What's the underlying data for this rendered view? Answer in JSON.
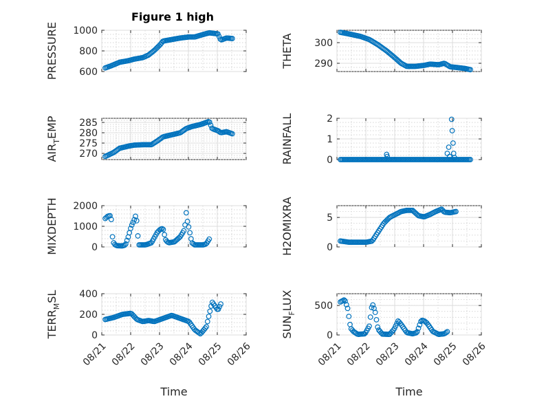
{
  "figure": {
    "title": "Figure 1 high"
  },
  "chart_data": [
    {
      "id": "pressure",
      "type": "scatter",
      "title": "Figure 1 high",
      "ylabel": "PRESSURE",
      "ylim": [
        600,
        1000
      ],
      "yticks": [
        600,
        800,
        1000
      ],
      "xlabel": "",
      "grid": "on",
      "knots": [
        [
          0,
          635
        ],
        [
          0.2,
          655
        ],
        [
          0.5,
          690
        ],
        [
          0.8,
          705
        ],
        [
          1.0,
          720
        ],
        [
          1.3,
          735
        ],
        [
          1.5,
          760
        ],
        [
          1.7,
          805
        ],
        [
          1.9,
          860
        ],
        [
          2.0,
          895
        ],
        [
          2.3,
          910
        ],
        [
          2.6,
          925
        ],
        [
          2.9,
          935
        ],
        [
          3.1,
          935
        ],
        [
          3.4,
          960
        ],
        [
          3.6,
          975
        ],
        [
          3.9,
          965
        ],
        [
          4.0,
          905
        ],
        [
          4.2,
          925
        ],
        [
          4.4,
          920
        ]
      ]
    },
    {
      "id": "theta",
      "type": "scatter",
      "ylabel": "THETA",
      "ylim": [
        286,
        306
      ],
      "yticks": [
        290,
        300
      ],
      "xlabel": "",
      "grid": "on",
      "knots": [
        [
          0,
          305
        ],
        [
          0.3,
          304.2
        ],
        [
          0.7,
          303
        ],
        [
          1.0,
          301.5
        ],
        [
          1.3,
          299
        ],
        [
          1.6,
          296
        ],
        [
          1.9,
          292.5
        ],
        [
          2.1,
          290
        ],
        [
          2.3,
          288.5
        ],
        [
          2.6,
          288.5
        ],
        [
          2.9,
          289
        ],
        [
          3.1,
          289.6
        ],
        [
          3.4,
          289.3
        ],
        [
          3.6,
          290
        ],
        [
          3.8,
          288.3
        ],
        [
          4.0,
          288
        ],
        [
          4.3,
          287.5
        ],
        [
          4.5,
          286.9
        ]
      ]
    },
    {
      "id": "air_temp",
      "type": "scatter",
      "ylabel": "AIR_TEMP",
      "ylim": [
        267,
        287
      ],
      "yticks": [
        270,
        275,
        280,
        285
      ],
      "xlabel": "",
      "grid": "on",
      "knots": [
        [
          0,
          268.5
        ],
        [
          0.3,
          270.5
        ],
        [
          0.5,
          272.5
        ],
        [
          0.8,
          273.5
        ],
        [
          1.0,
          274
        ],
        [
          1.3,
          274.2
        ],
        [
          1.6,
          274.2
        ],
        [
          1.8,
          276
        ],
        [
          2.0,
          278
        ],
        [
          2.3,
          279
        ],
        [
          2.6,
          280
        ],
        [
          2.8,
          282
        ],
        [
          3.0,
          283
        ],
        [
          3.3,
          284
        ],
        [
          3.6,
          285.5
        ],
        [
          3.7,
          282
        ],
        [
          3.9,
          281
        ],
        [
          4.0,
          280
        ],
        [
          4.2,
          280.5
        ],
        [
          4.4,
          279.5
        ]
      ]
    },
    {
      "id": "rainfall",
      "type": "scatter",
      "ylabel": "RAINFALL",
      "ylim": [
        0,
        2
      ],
      "yticks": [
        0,
        1,
        2
      ],
      "xlabel": "",
      "grid": "on",
      "knots": [
        [
          0,
          0
        ],
        [
          4.5,
          0
        ]
      ],
      "extra": [
        [
          1.6,
          0.25
        ],
        [
          1.62,
          0.15
        ],
        [
          3.7,
          0.3
        ],
        [
          3.75,
          0.6
        ],
        [
          3.78,
          0.15
        ],
        [
          3.85,
          1.95
        ],
        [
          3.87,
          1.4
        ],
        [
          3.9,
          0.8
        ],
        [
          3.92,
          0.3
        ],
        [
          3.95,
          0.1
        ]
      ]
    },
    {
      "id": "mixdepth",
      "type": "scatter",
      "ylabel": "MIXDEPTH",
      "ylim": [
        0,
        2000
      ],
      "yticks": [
        0,
        1000,
        2000
      ],
      "xlabel": "",
      "grid": "on",
      "knots": [
        [
          0,
          1380
        ],
        [
          0.1,
          1500
        ],
        [
          0.2,
          1520
        ],
        [
          0.25,
          500
        ],
        [
          0.3,
          150
        ],
        [
          0.4,
          60
        ],
        [
          0.6,
          50
        ],
        [
          0.7,
          100
        ],
        [
          0.8,
          500
        ],
        [
          0.9,
          1000
        ],
        [
          1.0,
          1300
        ],
        [
          1.05,
          1500
        ],
        [
          1.1,
          1200
        ],
        [
          1.15,
          100
        ],
        [
          1.4,
          100
        ],
        [
          1.6,
          200
        ],
        [
          1.8,
          700
        ],
        [
          1.9,
          850
        ],
        [
          2.0,
          900
        ],
        [
          2.1,
          300
        ],
        [
          2.2,
          200
        ],
        [
          2.4,
          250
        ],
        [
          2.6,
          500
        ],
        [
          2.75,
          850
        ],
        [
          2.8,
          1700
        ],
        [
          2.85,
          1200
        ],
        [
          2.9,
          900
        ],
        [
          3.0,
          200
        ],
        [
          3.1,
          100
        ],
        [
          3.4,
          100
        ],
        [
          3.5,
          150
        ],
        [
          3.6,
          380
        ]
      ]
    },
    {
      "id": "h2omixra",
      "type": "scatter",
      "ylabel": "H2OMIXRA",
      "ylim": [
        0,
        7
      ],
      "yticks": [
        0,
        5
      ],
      "xlabel": "",
      "grid": "on",
      "knots": [
        [
          0,
          1.0
        ],
        [
          0.3,
          0.8
        ],
        [
          0.6,
          0.8
        ],
        [
          0.9,
          0.8
        ],
        [
          1.1,
          1.0
        ],
        [
          1.3,
          2.5
        ],
        [
          1.5,
          4.0
        ],
        [
          1.7,
          5.0
        ],
        [
          1.9,
          5.5
        ],
        [
          2.1,
          6.0
        ],
        [
          2.3,
          6.2
        ],
        [
          2.5,
          6.2
        ],
        [
          2.7,
          5.3
        ],
        [
          2.9,
          5.1
        ],
        [
          3.1,
          5.5
        ],
        [
          3.3,
          6.0
        ],
        [
          3.5,
          6.4
        ],
        [
          3.6,
          5.9
        ],
        [
          3.8,
          5.8
        ],
        [
          4.0,
          6.0
        ]
      ]
    },
    {
      "id": "terr_msl",
      "type": "scatter",
      "ylabel": "TERR_MSL",
      "ylim": [
        0,
        400
      ],
      "yticks": [
        0,
        200,
        400
      ],
      "xlabel": "Time",
      "xticks": [
        "08/21",
        "08/22",
        "08/23",
        "08/24",
        "08/25",
        "08/26"
      ],
      "grid": "on",
      "knots": [
        [
          0,
          150
        ],
        [
          0.3,
          170
        ],
        [
          0.6,
          200
        ],
        [
          0.9,
          210
        ],
        [
          1.1,
          150
        ],
        [
          1.3,
          130
        ],
        [
          1.5,
          140
        ],
        [
          1.7,
          130
        ],
        [
          2.0,
          160
        ],
        [
          2.3,
          190
        ],
        [
          2.6,
          160
        ],
        [
          2.9,
          130
        ],
        [
          3.1,
          50
        ],
        [
          3.3,
          10
        ],
        [
          3.5,
          80
        ],
        [
          3.6,
          200
        ],
        [
          3.7,
          320
        ],
        [
          3.9,
          240
        ],
        [
          4.0,
          300
        ]
      ]
    },
    {
      "id": "sun_flux",
      "type": "scatter",
      "ylabel": "SUN_FLUX",
      "ylim": [
        0,
        700
      ],
      "yticks": [
        0,
        500
      ],
      "xlabel": "Time",
      "xticks": [
        "08/21",
        "08/22",
        "08/23",
        "08/24",
        "08/25",
        "08/26"
      ],
      "grid": "on",
      "knots": [
        [
          0,
          560
        ],
        [
          0.15,
          600
        ],
        [
          0.25,
          450
        ],
        [
          0.35,
          120
        ],
        [
          0.45,
          60
        ],
        [
          0.6,
          10
        ],
        [
          0.85,
          20
        ],
        [
          1.0,
          150
        ],
        [
          1.1,
          540
        ],
        [
          1.2,
          400
        ],
        [
          1.3,
          100
        ],
        [
          1.45,
          15
        ],
        [
          1.7,
          10
        ],
        [
          1.85,
          90
        ],
        [
          2.0,
          240
        ],
        [
          2.1,
          180
        ],
        [
          2.3,
          40
        ],
        [
          2.5,
          20
        ],
        [
          2.65,
          40
        ],
        [
          2.8,
          250
        ],
        [
          2.9,
          240
        ],
        [
          3.0,
          200
        ],
        [
          3.2,
          60
        ],
        [
          3.4,
          10
        ],
        [
          3.6,
          20
        ],
        [
          3.7,
          55
        ]
      ]
    }
  ]
}
